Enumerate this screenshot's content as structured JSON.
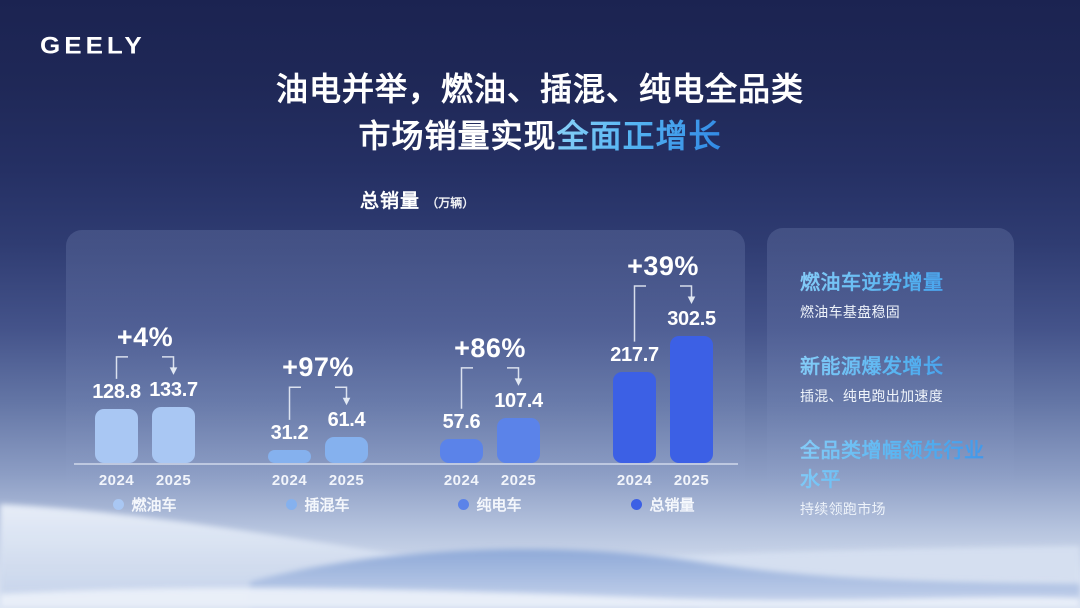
{
  "brand": {
    "logo_text": "GEELY"
  },
  "title": {
    "line1": "油电并举，燃油、插混、纯电全品类",
    "line2_prefix": "市场销量实现",
    "line2_highlight": "全面正增长",
    "highlight_color": "#55B2F0"
  },
  "chart_data": {
    "type": "bar",
    "title": "总销量",
    "title_unit": "（万辆）",
    "unit": "万辆",
    "categories": [
      "2024",
      "2025"
    ],
    "grid": false,
    "legend_position": "bottom",
    "ylim": [
      0,
      320
    ],
    "groups": [
      {
        "name": "燃油车",
        "values": [
          128.8,
          133.7
        ],
        "growth": "+4%",
        "color": "#A9C7F3"
      },
      {
        "name": "插混车",
        "values": [
          31.2,
          61.4
        ],
        "growth": "+97%",
        "color": "#85B1EE"
      },
      {
        "name": "纯电车",
        "values": [
          57.6,
          107.4
        ],
        "growth": "+86%",
        "color": "#5B83E9"
      },
      {
        "name": "总销量",
        "values": [
          217.7,
          302.5
        ],
        "growth": "+39%",
        "color": "#3C60E5"
      }
    ]
  },
  "highlights": [
    {
      "heading": "燃油车逆势增量",
      "sub": "燃油车基盘稳固"
    },
    {
      "heading": "新能源爆发增长",
      "sub": "插混、纯电跑出加速度"
    },
    {
      "heading": "全品类增幅领先行业水平",
      "sub": "持续领跑市场"
    }
  ]
}
